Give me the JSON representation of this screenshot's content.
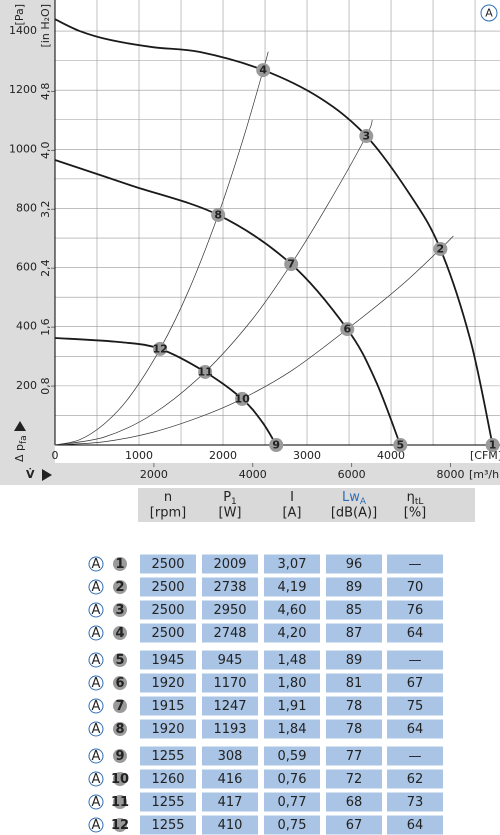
{
  "chart_data": {
    "type": "line",
    "annotation": "A",
    "xlabel": "V̇",
    "xunit": "[m³/h]",
    "x2unit": "[CFM]",
    "ylabel": "Δ p",
    "ylabel_sub": "fa",
    "yunit": "[Pa]",
    "y2unit": "[in H₂O]",
    "xlim": [
      0,
      9000
    ],
    "xticks": [
      2000,
      4000,
      6000,
      8000
    ],
    "x2lim": [
      0,
      5297
    ],
    "x2ticks": [
      0,
      1000,
      2000,
      3000,
      4000
    ],
    "x2grid": [
      500,
      1500,
      2500,
      3500,
      4500,
      5000
    ],
    "ylim": [
      0,
      1505
    ],
    "yticks": [
      200,
      400,
      600,
      800,
      1000,
      1200,
      1400
    ],
    "ygrid": [
      100,
      300,
      500,
      700,
      900,
      1100,
      1300
    ],
    "y2lim": [
      0,
      6.04
    ],
    "y2ticks": [
      {
        "value": 0.8,
        "label": "0,8"
      },
      {
        "value": 1.6,
        "label": "1,6"
      },
      {
        "value": 2.4,
        "label": "2,4"
      },
      {
        "value": 3.2,
        "label": "3,2"
      },
      {
        "value": 4.0,
        "label": "4,0"
      },
      {
        "value": 4.8,
        "label": "4,8"
      }
    ],
    "grid": true,
    "series": [
      {
        "color": "#1a1a1a",
        "width": 1.8,
        "x": [
          0,
          500,
          1113,
          2000,
          2935,
          4211,
          5364,
          6296,
          7186,
          7794,
          8401,
          8850
        ],
        "values": [
          1440,
          1400,
          1370,
          1345,
          1329,
          1268,
          1173,
          1045,
          845,
          663,
          355,
          0
        ]
      },
      {
        "color": "#1a1a1a",
        "width": 1.8,
        "x": [
          0,
          1518,
          3300,
          4777,
          5911,
          6478,
          6984
        ],
        "values": [
          964,
          879,
          778,
          612,
          392,
          220,
          0
        ]
      },
      {
        "color": "#1a1a1a",
        "width": 1.8,
        "x": [
          0,
          1316,
          2126,
          3036,
          3785,
          4190,
          4474
        ],
        "values": [
          362,
          348,
          325,
          247,
          156,
          78,
          0
        ]
      },
      {
        "color": "#333333",
        "width": 0.7,
        "x": [
          0,
          500,
          1000,
          1500,
          2126,
          2700,
          3300,
          3800,
          4211,
          4312
        ],
        "values": [
          0,
          18,
          72,
          161,
          325,
          521,
          778,
          1032,
          1268,
          1330
        ]
      },
      {
        "color": "#333333",
        "width": 0.7,
        "x": [
          0,
          1000,
          2000,
          3036,
          4000,
          4777,
          5500,
          6296,
          6417
        ],
        "values": [
          0,
          27,
          107,
          247,
          427,
          612,
          808,
          1045,
          1100
        ]
      },
      {
        "color": "#333333",
        "width": 0.7,
        "x": [
          0,
          1000,
          2000,
          3000,
          3785,
          4800,
          5911,
          7000,
          7794,
          8057
        ],
        "values": [
          0,
          11,
          44,
          99,
          156,
          253,
          392,
          539,
          663,
          707
        ]
      }
    ],
    "points": {
      "color": "#9a9a9a",
      "labels": [
        "1",
        "2",
        "3",
        "4",
        "5",
        "6",
        "7",
        "8",
        "9",
        "10",
        "11",
        "12"
      ],
      "x": [
        8850,
        7794,
        6296,
        4211,
        6984,
        5911,
        4777,
        3300,
        4474,
        3785,
        3036,
        2126
      ],
      "values": [
        0,
        663,
        1045,
        1268,
        0,
        392,
        612,
        778,
        0,
        156,
        247,
        325
      ]
    }
  },
  "table": {
    "header": [
      {
        "text": "n",
        "unit": "[rpm]"
      },
      {
        "text": "P",
        "sub": "1",
        "unit": "[W]"
      },
      {
        "text": "I",
        "unit": "[A]"
      },
      {
        "text": "Lw",
        "sub": "A",
        "unit": "[dB(A)]",
        "color": "#2f6db5"
      },
      {
        "text": "η",
        "sub": "tL",
        "unit": "[%]"
      }
    ],
    "rows": [
      {
        "curve": "A",
        "point": "1",
        "cells": [
          "2500",
          "2009",
          "3,07",
          "96",
          "—"
        ]
      },
      {
        "curve": "A",
        "point": "2",
        "cells": [
          "2500",
          "2738",
          "4,19",
          "89",
          "70"
        ]
      },
      {
        "curve": "A",
        "point": "3",
        "cells": [
          "2500",
          "2950",
          "4,60",
          "85",
          "76"
        ]
      },
      {
        "curve": "A",
        "point": "4",
        "cells": [
          "2500",
          "2748",
          "4,20",
          "87",
          "64"
        ]
      },
      {
        "curve": "A",
        "point": "5",
        "cells": [
          "1945",
          "945",
          "1,48",
          "89",
          "—"
        ]
      },
      {
        "curve": "A",
        "point": "6",
        "cells": [
          "1920",
          "1170",
          "1,80",
          "81",
          "67"
        ]
      },
      {
        "curve": "A",
        "point": "7",
        "cells": [
          "1915",
          "1247",
          "1,91",
          "78",
          "75"
        ]
      },
      {
        "curve": "A",
        "point": "8",
        "cells": [
          "1920",
          "1193",
          "1,84",
          "78",
          "64"
        ]
      },
      {
        "curve": "A",
        "point": "9",
        "cells": [
          "1255",
          "308",
          "0,59",
          "77",
          "—"
        ]
      },
      {
        "curve": "A",
        "point": "10",
        "cells": [
          "1260",
          "416",
          "0,76",
          "72",
          "62"
        ]
      },
      {
        "curve": "A",
        "point": "11",
        "cells": [
          "1255",
          "417",
          "0,77",
          "68",
          "73"
        ]
      },
      {
        "curve": "A",
        "point": "12",
        "cells": [
          "1255",
          "410",
          "0,75",
          "67",
          "64"
        ]
      }
    ]
  }
}
